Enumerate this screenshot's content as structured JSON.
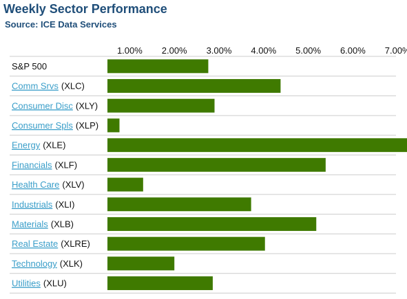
{
  "header": {
    "title": "Weekly Sector Performance",
    "subtitle": "Source: ICE Data Services"
  },
  "colors": {
    "bar": "#3f7a00",
    "link": "#3a9ec9",
    "row_line": "#cccccc",
    "title": "#1f4e79"
  },
  "chart_data": {
    "type": "bar",
    "orientation": "horizontal",
    "title": "Weekly Sector Performance",
    "subtitle": "Source: ICE Data Services",
    "xlim": [
      0.5,
      7.5
    ],
    "x_ticks": [
      "1.00%",
      "2.00%",
      "3.00%",
      "4.00%",
      "5.00%",
      "6.00%",
      "7.00%"
    ],
    "x_tick_values": [
      1,
      2,
      3,
      4,
      5,
      6,
      7
    ],
    "grid": false,
    "legend": "none",
    "categories": [
      {
        "name": "S&P 500",
        "ticker": "",
        "link": false
      },
      {
        "name": "Comm Srvs",
        "ticker": "(XLC)",
        "link": true
      },
      {
        "name": "Consumer Disc",
        "ticker": "(XLY)",
        "link": true
      },
      {
        "name": "Consumer Spls",
        "ticker": "(XLP)",
        "link": true
      },
      {
        "name": "Energy",
        "ticker": "(XLE)",
        "link": true
      },
      {
        "name": "Financials",
        "ticker": "(XLF)",
        "link": true
      },
      {
        "name": "Health Care",
        "ticker": "(XLV)",
        "link": true
      },
      {
        "name": "Industrials",
        "ticker": "(XLI)",
        "link": true
      },
      {
        "name": "Materials",
        "ticker": "(XLB)",
        "link": true
      },
      {
        "name": "Real Estate",
        "ticker": "(XLRE)",
        "link": true
      },
      {
        "name": "Technology",
        "ticker": "(XLK)",
        "link": true
      },
      {
        "name": "Utilities",
        "ticker": "(XLU)",
        "link": true
      }
    ],
    "values": [
      2.76,
      4.38,
      2.9,
      0.77,
      7.43,
      5.39,
      1.3,
      3.72,
      5.18,
      4.03,
      2.0,
      2.86
    ]
  }
}
